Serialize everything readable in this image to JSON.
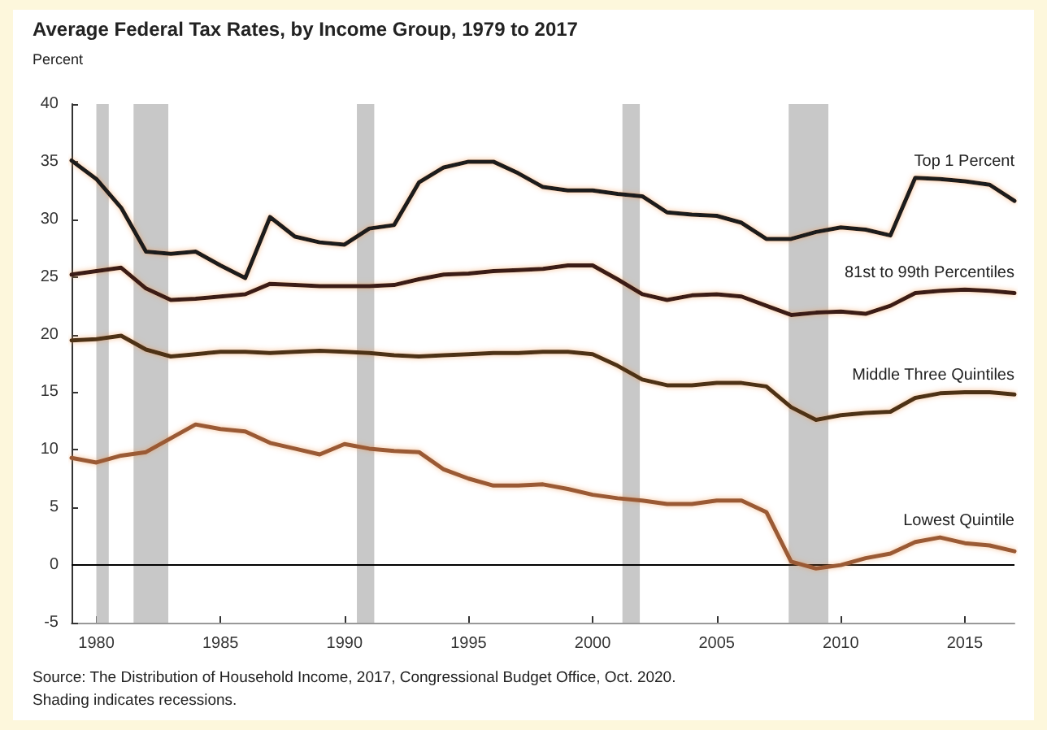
{
  "chart_data": {
    "type": "line",
    "title": "Average Federal Tax Rates, by Income Group, 1979 to 2017",
    "ylabel": "Percent",
    "x": [
      1979,
      1980,
      1981,
      1982,
      1983,
      1984,
      1985,
      1986,
      1987,
      1988,
      1989,
      1990,
      1991,
      1992,
      1993,
      1994,
      1995,
      1996,
      1997,
      1998,
      1999,
      2000,
      2001,
      2002,
      2003,
      2004,
      2005,
      2006,
      2007,
      2008,
      2009,
      2010,
      2011,
      2012,
      2013,
      2014,
      2015,
      2016,
      2017
    ],
    "series": [
      {
        "name": "Top 1 Percent",
        "color": "#1a1a1a",
        "values": [
          35.1,
          33.5,
          31,
          27.2,
          27,
          27.2,
          26,
          24.9,
          30.2,
          28.5,
          28,
          27.8,
          29.2,
          29.5,
          33.2,
          34.5,
          35,
          35,
          34,
          32.8,
          32.5,
          32.5,
          32.2,
          32,
          30.6,
          30.4,
          30.3,
          29.7,
          28.3,
          28.3,
          28.9,
          29.3,
          29.1,
          28.6,
          33.6,
          33.5,
          33.3,
          33,
          31.6
        ]
      },
      {
        "name": "81st to 99th Percentiles",
        "color": "#3b1b17",
        "values": [
          25.2,
          25.5,
          25.8,
          24,
          23,
          23.1,
          23.3,
          23.5,
          24.4,
          24.3,
          24.2,
          24.2,
          24.2,
          24.3,
          24.8,
          25.2,
          25.3,
          25.5,
          25.6,
          25.7,
          26,
          26,
          24.8,
          23.5,
          23,
          23.4,
          23.5,
          23.3,
          22.5,
          21.7,
          21.9,
          22,
          21.8,
          22.5,
          23.6,
          23.8,
          23.9,
          23.8,
          23.6
        ]
      },
      {
        "name": "Middle Three Quintiles",
        "color": "#4d3318",
        "values": [
          19.5,
          19.6,
          19.9,
          18.7,
          18.1,
          18.3,
          18.5,
          18.5,
          18.4,
          18.5,
          18.6,
          18.5,
          18.4,
          18.2,
          18.1,
          18.2,
          18.3,
          18.4,
          18.4,
          18.5,
          18.5,
          18.3,
          17.3,
          16.1,
          15.6,
          15.6,
          15.8,
          15.8,
          15.5,
          13.7,
          12.6,
          13,
          13.2,
          13.3,
          14.5,
          14.9,
          15,
          15,
          14.8
        ]
      },
      {
        "name": "Lowest Quintile",
        "color": "#9a5a36",
        "values": [
          9.3,
          8.9,
          9.5,
          9.8,
          11,
          12.2,
          11.8,
          11.6,
          10.6,
          10.1,
          9.6,
          10.5,
          10.1,
          9.9,
          9.8,
          8.3,
          7.5,
          6.9,
          6.9,
          7,
          6.6,
          6.1,
          5.8,
          5.6,
          5.3,
          5.3,
          5.6,
          5.6,
          4.6,
          0.3,
          -0.3,
          0,
          0.6,
          1,
          2,
          2.4,
          1.9,
          1.7,
          1.2
        ]
      }
    ],
    "xlim": [
      1979,
      2017
    ],
    "xticks": [
      1980,
      1985,
      1990,
      1995,
      2000,
      2005,
      2010,
      2015
    ],
    "ylim": [
      -5,
      40
    ],
    "yticks": [
      -5,
      0,
      5,
      10,
      15,
      20,
      25,
      30,
      35,
      40
    ],
    "ref_lines": [
      {
        "axis": "y",
        "value": 0,
        "color": "#000000"
      }
    ],
    "bands": [
      {
        "axis": "x",
        "from": 1980,
        "to": 1980.5,
        "color": "#c8c8c8"
      },
      {
        "axis": "x",
        "from": 1981.5,
        "to": 1982.9,
        "color": "#c8c8c8"
      },
      {
        "axis": "x",
        "from": 1990.5,
        "to": 1991.2,
        "color": "#c8c8c8"
      },
      {
        "axis": "x",
        "from": 2001.2,
        "to": 2001.9,
        "color": "#c8c8c8"
      },
      {
        "axis": "x",
        "from": 2007.9,
        "to": 2009.5,
        "color": "#c8c8c8"
      }
    ],
    "annotations": [
      "Source: The Distribution of Household Income, 2017, Congressional Budget Office, Oct. 2020.",
      "Shading indicates recessions."
    ],
    "grid": false,
    "legend": false,
    "marker": "none",
    "line_style": "solid"
  }
}
